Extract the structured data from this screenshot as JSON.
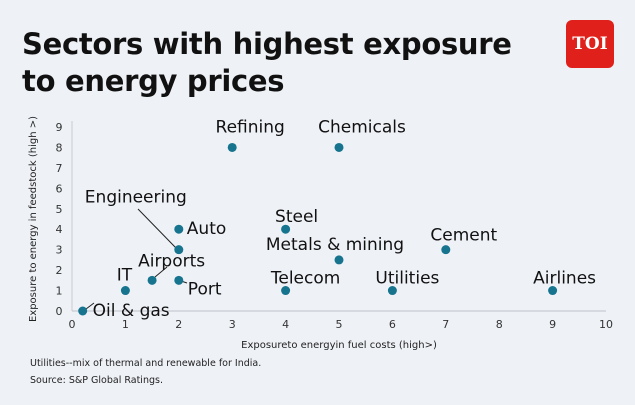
{
  "header": {
    "title_line1": "Sectors with highest exposure",
    "title_line2": "to energy prices",
    "logo_text": "TOI"
  },
  "chart_data": {
    "type": "scatter",
    "xlabel": "Exposureto energyin fuel costs (high>)",
    "ylabel": "Exposure to energy in feedstock (high >)",
    "xlim": [
      0,
      10
    ],
    "ylim": [
      0,
      9
    ],
    "xticks": [
      "0",
      "1",
      "2",
      "3",
      "4",
      "5",
      "6",
      "7",
      "8",
      "9",
      "10"
    ],
    "yticks": [
      "0",
      "1",
      "2",
      "3",
      "4",
      "5",
      "6",
      "7",
      "8",
      "9"
    ],
    "grid": false,
    "point_color": "#17748f",
    "points": [
      {
        "label": "Oil & gas",
        "x": 0.2,
        "y": 0
      },
      {
        "label": "IT",
        "x": 1,
        "y": 1
      },
      {
        "label": "Airports",
        "x": 1.5,
        "y": 1.5
      },
      {
        "label": "Port",
        "x": 2,
        "y": 1.5
      },
      {
        "label": "Engineering",
        "x": 2,
        "y": 3
      },
      {
        "label": "Auto",
        "x": 2,
        "y": 4
      },
      {
        "label": "Refining",
        "x": 3,
        "y": 8
      },
      {
        "label": "Chemicals",
        "x": 5,
        "y": 8
      },
      {
        "label": "Steel",
        "x": 4,
        "y": 4
      },
      {
        "label": "Metals & mining",
        "x": 5,
        "y": 2.5
      },
      {
        "label": "Telecom",
        "x": 4,
        "y": 1
      },
      {
        "label": "Utilities",
        "x": 6,
        "y": 1
      },
      {
        "label": "Cement",
        "x": 7,
        "y": 3
      },
      {
        "label": "Airlines",
        "x": 9,
        "y": 1
      }
    ]
  },
  "footer": {
    "note": "Utilities--mix of thermal and renewable for India.",
    "source": "Source: S&P Global Ratings."
  }
}
